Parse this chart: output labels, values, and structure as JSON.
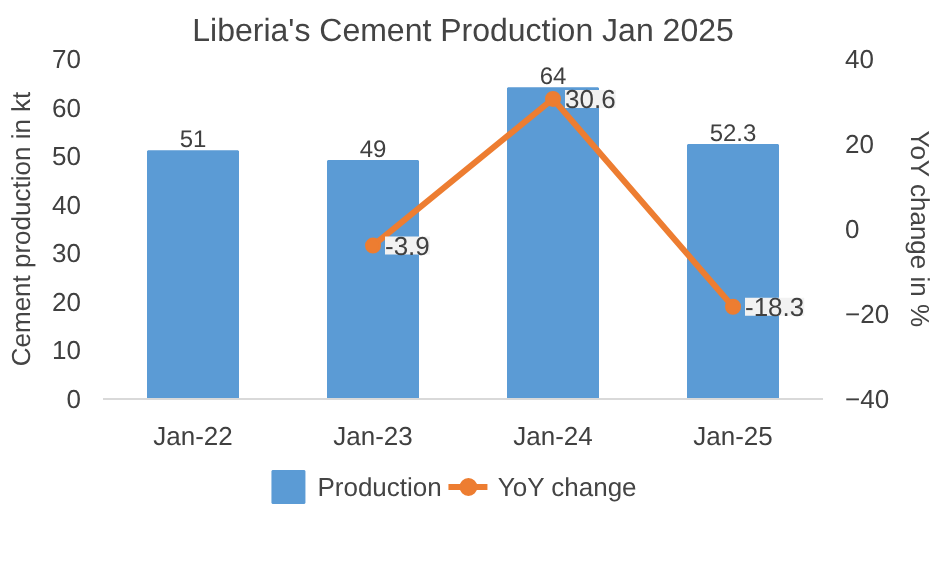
{
  "chart_data": {
    "type": "bar",
    "title": "Liberia's Cement Production Jan 2025",
    "categories": [
      "Jan-22",
      "Jan-23",
      "Jan-24",
      "Jan-25"
    ],
    "series": [
      {
        "name": "Production",
        "color": "#5b9bd5",
        "values": [
          51,
          49,
          64,
          52.3
        ]
      },
      {
        "name": "YoY change",
        "type": "line",
        "axis": "y2",
        "color": "#ed7d31",
        "marker": "circle",
        "values": [
          null,
          -3.9,
          30.6,
          -18.3
        ]
      }
    ],
    "ylabel": "Cement production in kt",
    "y2label": "YoY change in %",
    "ylim": [
      0,
      70
    ],
    "yticks": [
      0,
      10,
      20,
      30,
      40,
      50,
      60,
      70
    ],
    "y2lim": [
      -40,
      40
    ],
    "y2ticks": [
      -40,
      -20,
      0,
      20,
      40
    ],
    "data_labels": true,
    "legend": "bottom",
    "grid": false
  }
}
